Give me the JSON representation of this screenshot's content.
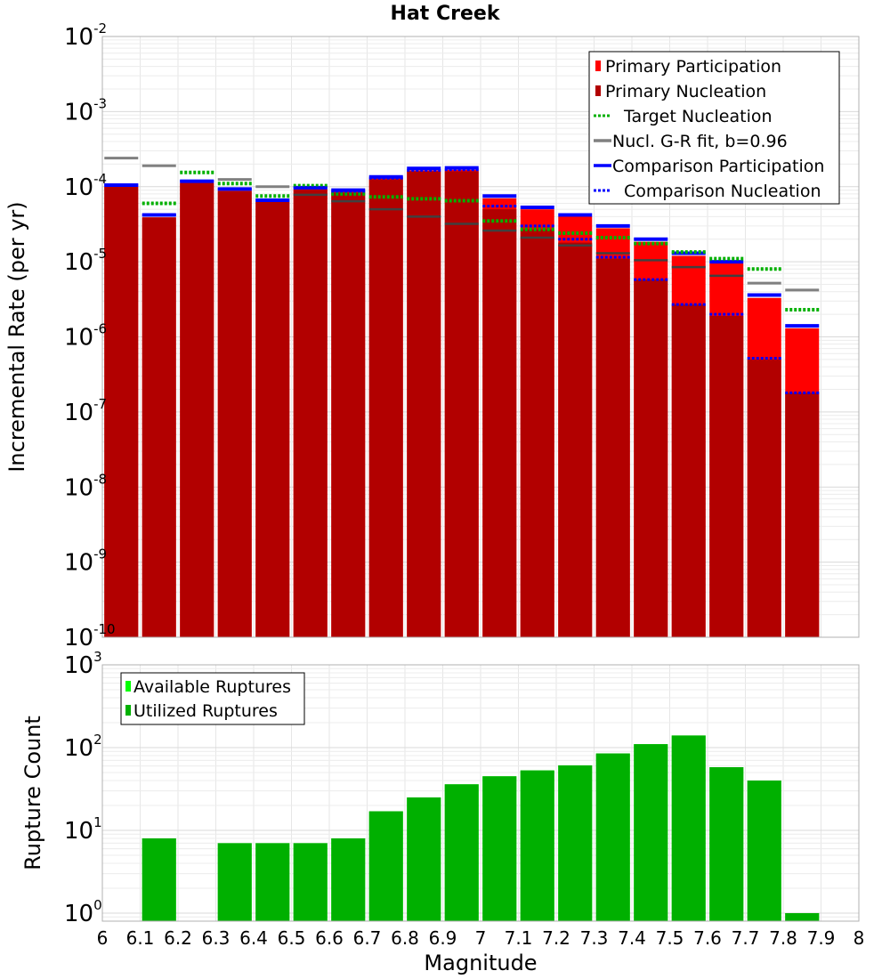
{
  "chart_data": [
    {
      "type": "bar",
      "title": "Hat Creek",
      "xlabel": "",
      "ylabel": "Incremental Rate (per yr)",
      "yscale": "log",
      "ylim": [
        1e-10,
        0.01
      ],
      "xlim": [
        6,
        8
      ],
      "y_tick_exponents": [
        "-10",
        "-9",
        "-8",
        "-7",
        "-6",
        "-5",
        "-4",
        "-3",
        "-2"
      ],
      "grid": true,
      "legend_position": "top-right",
      "bin_centers": [
        6.05,
        6.15,
        6.25,
        6.35,
        6.45,
        6.55,
        6.65,
        6.75,
        6.85,
        6.95,
        7.05,
        7.15,
        7.25,
        7.35,
        7.45,
        7.55,
        7.65,
        7.75,
        7.85
      ],
      "series": [
        {
          "name": "Primary Participation",
          "style": "bar",
          "color": "#ff0000",
          "values": [
            0.0001,
            3.9e-05,
            0.000112,
            8.8e-05,
            6.3e-05,
            9.2e-05,
            8.6e-05,
            0.00013,
            0.000165,
            0.000168,
            7e-05,
            5e-05,
            4e-05,
            2.8e-05,
            1.85e-05,
            1.2e-05,
            9.5e-06,
            3.3e-06,
            1.3e-06
          ]
        },
        {
          "name": "Primary Nucleation",
          "style": "bar",
          "color": "#b20000",
          "values": [
            0.0001,
            3.9e-05,
            0.000112,
            8.8e-05,
            6.3e-05,
            9.2e-05,
            8.3e-05,
            0.000125,
            0.00016,
            0.00016,
            5e-05,
            2.7e-05,
            1.8e-05,
            1.1e-05,
            5.8e-06,
            2.7e-06,
            1.9e-06,
            5e-07,
            1.8e-07
          ]
        },
        {
          "name": "Target Nucleation",
          "style": "dotted",
          "color": "#00b000",
          "values": [
            null,
            6e-05,
            0.000155,
            0.00011,
            7.5e-05,
            0.000103,
            8e-05,
            7.3e-05,
            6.9e-05,
            6.5e-05,
            3.5e-05,
            2.7e-05,
            2.4e-05,
            2.1e-05,
            1.75e-05,
            1.35e-05,
            1.1e-05,
            8e-06,
            2.3e-06
          ]
        },
        {
          "name": "Nucl. G-R fit, b=0.96",
          "style": "solid",
          "color": "#808080",
          "values": [
            0.00024,
            0.00019,
            null,
            0.000125,
            0.0001,
            null,
            null,
            null,
            null,
            null,
            null,
            null,
            null,
            null,
            null,
            null,
            null,
            5.2e-06,
            4.2e-06
          ]
        },
        {
          "name": "Comparison Participation",
          "style": "solid",
          "color": "#0000ff",
          "values": [
            0.000105,
            4.2e-05,
            0.000118,
            9.3e-05,
            6.6e-05,
            9.7e-05,
            9e-05,
            0.000135,
            0.000175,
            0.000178,
            7.5e-05,
            5.3e-05,
            4.2e-05,
            3e-05,
            2e-05,
            1.3e-05,
            1e-05,
            3.6e-06,
            1.4e-06
          ]
        },
        {
          "name": "Comparison Nucleation",
          "style": "dotted",
          "color": "#0000ff",
          "values": [
            0.000105,
            4.2e-05,
            0.000118,
            9.3e-05,
            6.6e-05,
            9.7e-05,
            8.7e-05,
            0.00013,
            0.000165,
            0.000168,
            5.5e-05,
            3e-05,
            2e-05,
            1.15e-05,
            5.8e-06,
            2.7e-06,
            2e-06,
            5.2e-07,
            1.8e-07
          ]
        }
      ],
      "extra_markers": {
        "color": "#404040",
        "values": [
          null,
          null,
          null,
          null,
          null,
          7.8e-05,
          6.4e-05,
          5e-05,
          4e-05,
          3.2e-05,
          2.6e-05,
          2.1e-05,
          1.65e-05,
          1.3e-05,
          1.05e-05,
          8.5e-06,
          6.5e-06,
          null,
          null
        ]
      }
    },
    {
      "type": "bar",
      "title": "",
      "xlabel": "Magnitude",
      "ylabel": "Rupture Count",
      "yscale": "log",
      "ylim": [
        0.8,
        1000
      ],
      "xlim": [
        6,
        8
      ],
      "x_ticks": [
        "6",
        "6.1",
        "6.2",
        "6.3",
        "6.4",
        "6.5",
        "6.6",
        "6.7",
        "6.8",
        "6.9",
        "7",
        "7.1",
        "7.2",
        "7.3",
        "7.4",
        "7.5",
        "7.6",
        "7.7",
        "7.8",
        "7.9",
        "8"
      ],
      "y_tick_exponents": [
        "0",
        "1",
        "2",
        "3"
      ],
      "grid": true,
      "legend_position": "top-left",
      "bin_centers": [
        6.05,
        6.15,
        6.25,
        6.35,
        6.45,
        6.55,
        6.65,
        6.75,
        6.85,
        6.95,
        7.05,
        7.15,
        7.25,
        7.35,
        7.45,
        7.55,
        7.65,
        7.75,
        7.85
      ],
      "series": [
        {
          "name": "Available Ruptures",
          "style": "bar",
          "color": "#00ff00",
          "values": [
            null,
            8,
            null,
            7,
            7,
            7,
            8,
            17,
            25,
            36,
            45,
            53,
            61,
            85,
            110,
            140,
            58,
            40,
            1
          ]
        },
        {
          "name": "Utilized Ruptures",
          "style": "bar",
          "color": "#00b000",
          "values": [
            null,
            8,
            null,
            7,
            7,
            7,
            8,
            17,
            25,
            36,
            45,
            53,
            61,
            85,
            110,
            140,
            58,
            40,
            1
          ]
        }
      ]
    }
  ]
}
